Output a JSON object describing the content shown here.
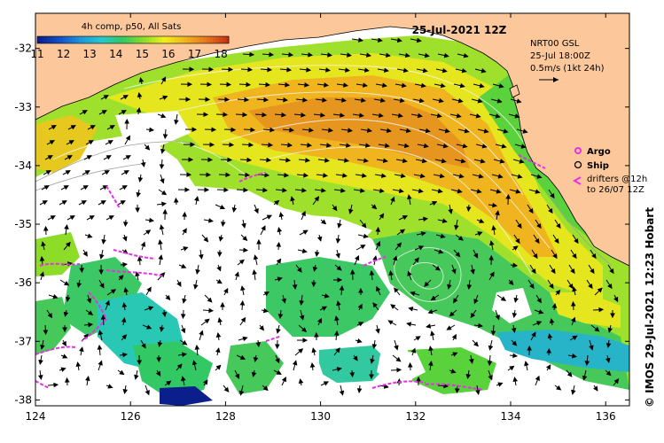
{
  "map": {
    "title": "25-Jul-2021 12Z",
    "product": "4h comp, p50, All Sats",
    "colorbar": {
      "ticks": [
        "11",
        "12",
        "13",
        "14",
        "15",
        "16",
        "17",
        "18"
      ],
      "range": [
        11,
        18.3
      ],
      "colors": [
        "#0a1e8c",
        "#1450c8",
        "#1e96dc",
        "#28c8c8",
        "#32c864",
        "#8cdc28",
        "#f0f01e",
        "#f0b41e",
        "#e6781e",
        "#c83214"
      ]
    },
    "velocity_info": {
      "line1": "NRT00 GSL",
      "line2": "25-Jul 18:00Z",
      "line3": "0.5m/s (1kt 24h)"
    },
    "legend": {
      "argo": "Argo",
      "ship": "Ship",
      "drifters_line1": "drifters @12h",
      "drifters_line2": "to 26/07 12Z",
      "argo_color": "#e632e6",
      "drifter_color": "#e632e6"
    },
    "x_axis": {
      "ticks": [
        "124",
        "126",
        "128",
        "130",
        "132",
        "134",
        "136"
      ],
      "range": [
        124,
        136.5
      ]
    },
    "y_axis": {
      "ticks": [
        "-32",
        "-33",
        "-34",
        "-35",
        "-36",
        "-37",
        "-38"
      ],
      "range": [
        -38.1,
        -31.4
      ]
    },
    "credit": "© IMOS 29-Jul-2021 12:23 Hobart",
    "land_color": "#fcc89b"
  }
}
